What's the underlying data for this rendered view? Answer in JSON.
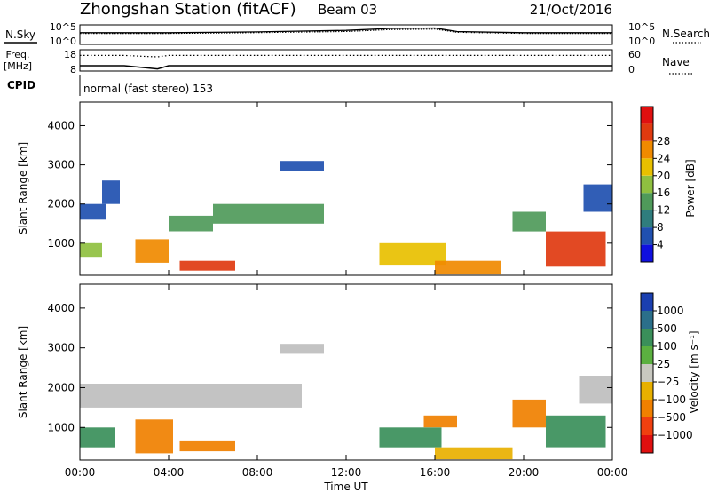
{
  "header": {
    "station": "Zhongshan Station (fitACF)",
    "beam": "Beam 03",
    "date": "21/Oct/2016"
  },
  "strip_panels": {
    "nsky": {
      "label": "N.Sky",
      "ticks_left": [
        "10^5",
        "10^0"
      ],
      "ticks_right": [
        "10^5",
        "10^0"
      ],
      "right_label": "N.Search"
    },
    "freq": {
      "label_line1": "Freq.",
      "label_line2": "[MHz]",
      "ticks_left": [
        "18",
        "8"
      ],
      "ticks_right": [
        "60",
        "0"
      ],
      "right_label": "Nave"
    },
    "cpid": {
      "label": "CPID",
      "value": "normal (fast stereo) 153"
    }
  },
  "axes": {
    "x_ticks": [
      "00:00",
      "04:00",
      "08:00",
      "12:00",
      "16:00",
      "20:00",
      "00:00"
    ],
    "x_label": "Time UT",
    "y_label": "Slant Range [km]",
    "y_ticks": [
      "1000",
      "2000",
      "3000",
      "4000"
    ]
  },
  "colorbars": {
    "power": {
      "title": "Power [dB]",
      "ticks": [
        "4",
        "8",
        "12",
        "16",
        "20",
        "24",
        "28"
      ]
    },
    "velocity": {
      "title": "Velocity [m s⁻¹]",
      "ticks": [
        "1000",
        "500",
        "100",
        "25",
        "−25",
        "−100",
        "−500",
        "−1000"
      ]
    }
  },
  "colors": {
    "power_scale": [
      "#1010e0",
      "#2050b0",
      "#2f7d7d",
      "#4f9a5a",
      "#8fc040",
      "#e8c000",
      "#f08a00",
      "#e03a10",
      "#e01010"
    ],
    "velocity_scale": [
      "#1a3fb0",
      "#2b6f8a",
      "#3a8f5a",
      "#5bb040",
      "#c8c8c0",
      "#e8b000",
      "#f08000",
      "#f04010",
      "#e01010"
    ],
    "ground_scatter": "#bebebe"
  },
  "chart_data": [
    {
      "type": "line",
      "title": "N.Sky / N.Search",
      "x": [
        "00:00",
        "04:00",
        "08:00",
        "12:00",
        "14:00",
        "16:00",
        "17:00",
        "20:00",
        "24:00"
      ],
      "series": [
        {
          "name": "N.Sky",
          "values": [
            3.0,
            3.0,
            3.2,
            3.6,
            4.1,
            4.2,
            3.3,
            3.0,
            3.0
          ]
        },
        {
          "name": "N.Search",
          "values": [
            2.8,
            2.8,
            3.0,
            3.3,
            3.8,
            3.9,
            3.1,
            2.8,
            2.8
          ]
        }
      ],
      "ylim": [
        0,
        5
      ]
    },
    {
      "type": "line",
      "title": "Freq. / Nave",
      "x": [
        "00:00",
        "02:00",
        "03:00",
        "03:30",
        "04:00",
        "12:00",
        "20:00",
        "24:00"
      ],
      "series": [
        {
          "name": "Freq.",
          "values": [
            10.5,
            10.5,
            9.5,
            9.0,
            10.5,
            10.5,
            10.5,
            10.5
          ]
        },
        {
          "name": "Nave",
          "values": [
            44,
            44,
            41,
            40,
            44,
            44,
            44,
            44
          ]
        }
      ],
      "ylim": [
        8,
        18
      ]
    },
    {
      "type": "heatmap",
      "title": "Power [dB]",
      "xlabel": "Time UT",
      "ylabel": "Slant Range [km]",
      "xlim": [
        0,
        24
      ],
      "ylim": [
        180,
        4600
      ],
      "clim": [
        0,
        30
      ],
      "regions": [
        {
          "t": [
            0.0,
            1.2
          ],
          "r": [
            1600,
            2000
          ],
          "value": 6
        },
        {
          "t": [
            0.0,
            1.0
          ],
          "r": [
            650,
            1000
          ],
          "value": 14
        },
        {
          "t": [
            1.0,
            1.8
          ],
          "r": [
            2000,
            2600
          ],
          "value": 5
        },
        {
          "t": [
            2.5,
            4.0
          ],
          "r": [
            500,
            1100
          ],
          "value": 22
        },
        {
          "t": [
            4.5,
            7.0
          ],
          "r": [
            300,
            550
          ],
          "value": 26
        },
        {
          "t": [
            4.0,
            6.0
          ],
          "r": [
            1300,
            1700
          ],
          "value": 12
        },
        {
          "t": [
            6.0,
            11.0
          ],
          "r": [
            1500,
            2000
          ],
          "value": 10
        },
        {
          "t": [
            9.0,
            11.0
          ],
          "r": [
            2850,
            3100
          ],
          "value": 5
        },
        {
          "t": [
            13.5,
            16.5
          ],
          "r": [
            450,
            1000
          ],
          "value": 18
        },
        {
          "t": [
            16.0,
            19.0
          ],
          "r": [
            200,
            550
          ],
          "value": 20
        },
        {
          "t": [
            19.5,
            21.0
          ],
          "r": [
            1300,
            1800
          ],
          "value": 12
        },
        {
          "t": [
            21.0,
            23.7
          ],
          "r": [
            400,
            1300
          ],
          "value": 26
        },
        {
          "t": [
            22.7,
            24.0
          ],
          "r": [
            1800,
            2500
          ],
          "value": 6
        }
      ]
    },
    {
      "type": "heatmap",
      "title": "Velocity [m s⁻¹]",
      "xlabel": "Time UT",
      "ylabel": "Slant Range [km]",
      "xlim": [
        0,
        24
      ],
      "ylim": [
        180,
        4600
      ],
      "regions": [
        {
          "t": [
            0.0,
            10.0
          ],
          "r": [
            1500,
            2100
          ],
          "value": 0,
          "ground_scatter": true
        },
        {
          "t": [
            9.0,
            11.0
          ],
          "r": [
            2850,
            3100
          ],
          "value": 0,
          "ground_scatter": true
        },
        {
          "t": [
            0.0,
            1.6
          ],
          "r": [
            500,
            1000
          ],
          "value": 150
        },
        {
          "t": [
            2.5,
            4.2
          ],
          "r": [
            350,
            1200
          ],
          "value": -500
        },
        {
          "t": [
            4.5,
            7.0
          ],
          "r": [
            400,
            650
          ],
          "value": -300
        },
        {
          "t": [
            13.5,
            16.3
          ],
          "r": [
            500,
            1000
          ],
          "value": 400
        },
        {
          "t": [
            15.5,
            17.0
          ],
          "r": [
            1000,
            1300
          ],
          "value": -200
        },
        {
          "t": [
            16.0,
            19.5
          ],
          "r": [
            200,
            500
          ],
          "value": -100
        },
        {
          "t": [
            19.5,
            21.0
          ],
          "r": [
            1000,
            1700
          ],
          "value": -300
        },
        {
          "t": [
            21.0,
            23.7
          ],
          "r": [
            500,
            1300
          ],
          "value": 200
        },
        {
          "t": [
            22.5,
            24.0
          ],
          "r": [
            1600,
            2300
          ],
          "value": 0,
          "ground_scatter": true
        }
      ]
    }
  ]
}
